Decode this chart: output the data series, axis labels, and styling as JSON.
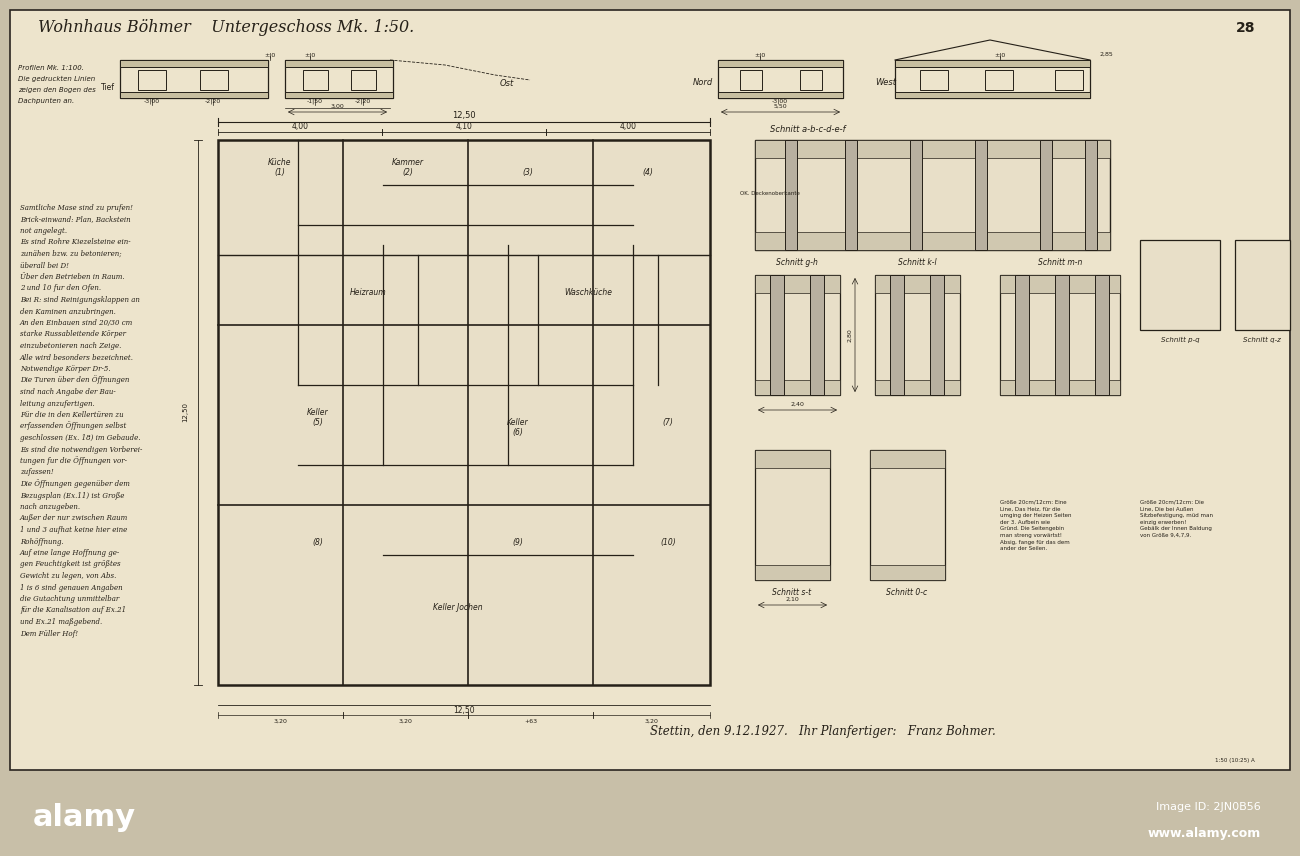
{
  "bg_outer": "#c8bfa8",
  "paper_color": "#e8dfc8",
  "paper_color2": "#ede4cc",
  "border_color": "#2a2520",
  "ink_color": "#252018",
  "ink_light": "#403830",
  "title_text": "Wohnhaus Bohmer    Untergeschoss Mk. 1:50.",
  "page_number": "28",
  "signature_text": "Stettin, den 9.12.1927.   Ihr Planfertiger:   Franz Bohmer.",
  "watermark_bg": "#000000",
  "wm_left": "alamy",
  "wm_id": "Image ID: 2JN0B56",
  "wm_url": "www.alamy.com",
  "left_notes": [
    "Samtliche Mase sind zu prufen!",
    "Brick-einwand: Plan, Backstein",
    "not angelegt.",
    "Es sind Rohre Kiezelsteine ein-",
    "zunähen bzw. zu betonieren;",
    "überall bei D!",
    "Über den Betrieben in Raum.",
    "2 und 10 fur den Ofen.",
    "Bei R: sind Reinigungsklappen an",
    "den Kaminen anzubringen.",
    "An den Einbauen sind 20/30 cm",
    "starke Russableitende Körper",
    "einzubetonieren nach Zeige.",
    "Alle wird besonders bezeichnet.",
    "Notwendige Körper Dr-5.",
    "Die Turen über den Öffnungen",
    "sind nach Angabe der Bau-",
    "leitung anzufertigen.",
    "Für die in den Kellertüren zu",
    "erfassenden Öffnungen selbst",
    "geschlossen (Ex. 18) im Gebaude.",
    "Es sind die notwendigen Vorberei-",
    "tungen fur die Öffnungen vor-",
    "zufassen!",
    "Die Öffnungen gegenüber dem",
    "Bezugsplan (Ex.11) ist Große",
    "nach anzugeben.",
    "Außer der nur zwischen Raum",
    "1 und 3 aufhat keine hier eine",
    "Rohöffnung.",
    "Auf eine lange Hoffnung ge-",
    "gen Feuchtigkeit ist größtes",
    "Gewicht zu legen, von Abs.",
    "1 is 6 sind genauen Angaben",
    "die Gutachtung unmittelbar",
    "für die Kanalisation auf Ex.21",
    "und Ex.21 maßgebend.",
    "Dem Füller Hof!"
  ],
  "bottom_notes_left": [
    "Profilen Mk. 1:100.",
    "Die gedruckten Linien",
    "zeigen den Bogen des",
    "Dachpunten an."
  ]
}
